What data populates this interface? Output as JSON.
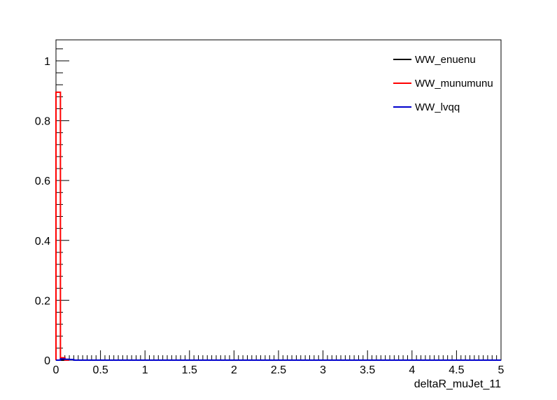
{
  "chart_data": {
    "type": "histogram",
    "xlabel": "deltaR_muJet_11",
    "ylabel": "",
    "xlim": [
      0,
      5
    ],
    "ylim": [
      0,
      1.07
    ],
    "x_ticks": [
      "0",
      "0.5",
      "1",
      "1.5",
      "2",
      "2.5",
      "3",
      "3.5",
      "4",
      "4.5",
      "5"
    ],
    "y_ticks": [
      "0",
      "0.2",
      "0.4",
      "0.6",
      "0.8",
      "1"
    ],
    "bin_width": 0.05,
    "legend_position": "top-right",
    "grid": false,
    "series": [
      {
        "name": "WW_enuenu",
        "color": "#000000",
        "bins": [
          {
            "x0": 0.0,
            "x1": 0.05,
            "y": 0.0
          },
          {
            "x0": 0.05,
            "x1": 0.1,
            "y": 0.0
          }
        ]
      },
      {
        "name": "WW_munumunu",
        "color": "#ff0000",
        "bins": [
          {
            "x0": 0.0,
            "x1": 0.05,
            "y": 0.895
          },
          {
            "x0": 0.05,
            "x1": 0.1,
            "y": 0.008
          },
          {
            "x0": 0.1,
            "x1": 0.15,
            "y": 0.0
          }
        ]
      },
      {
        "name": "WW_lvqq",
        "color": "#0000cc",
        "bins": [
          {
            "x0": 0.0,
            "x1": 0.05,
            "y": 0.0
          },
          {
            "x0": 0.05,
            "x1": 0.1,
            "y": 0.004
          },
          {
            "x0": 0.1,
            "x1": 0.15,
            "y": 0.003
          },
          {
            "x0": 0.15,
            "x1": 0.2,
            "y": 0.002
          },
          {
            "x0": 0.2,
            "x1": 5.0,
            "y": 0.0
          }
        ]
      }
    ]
  }
}
